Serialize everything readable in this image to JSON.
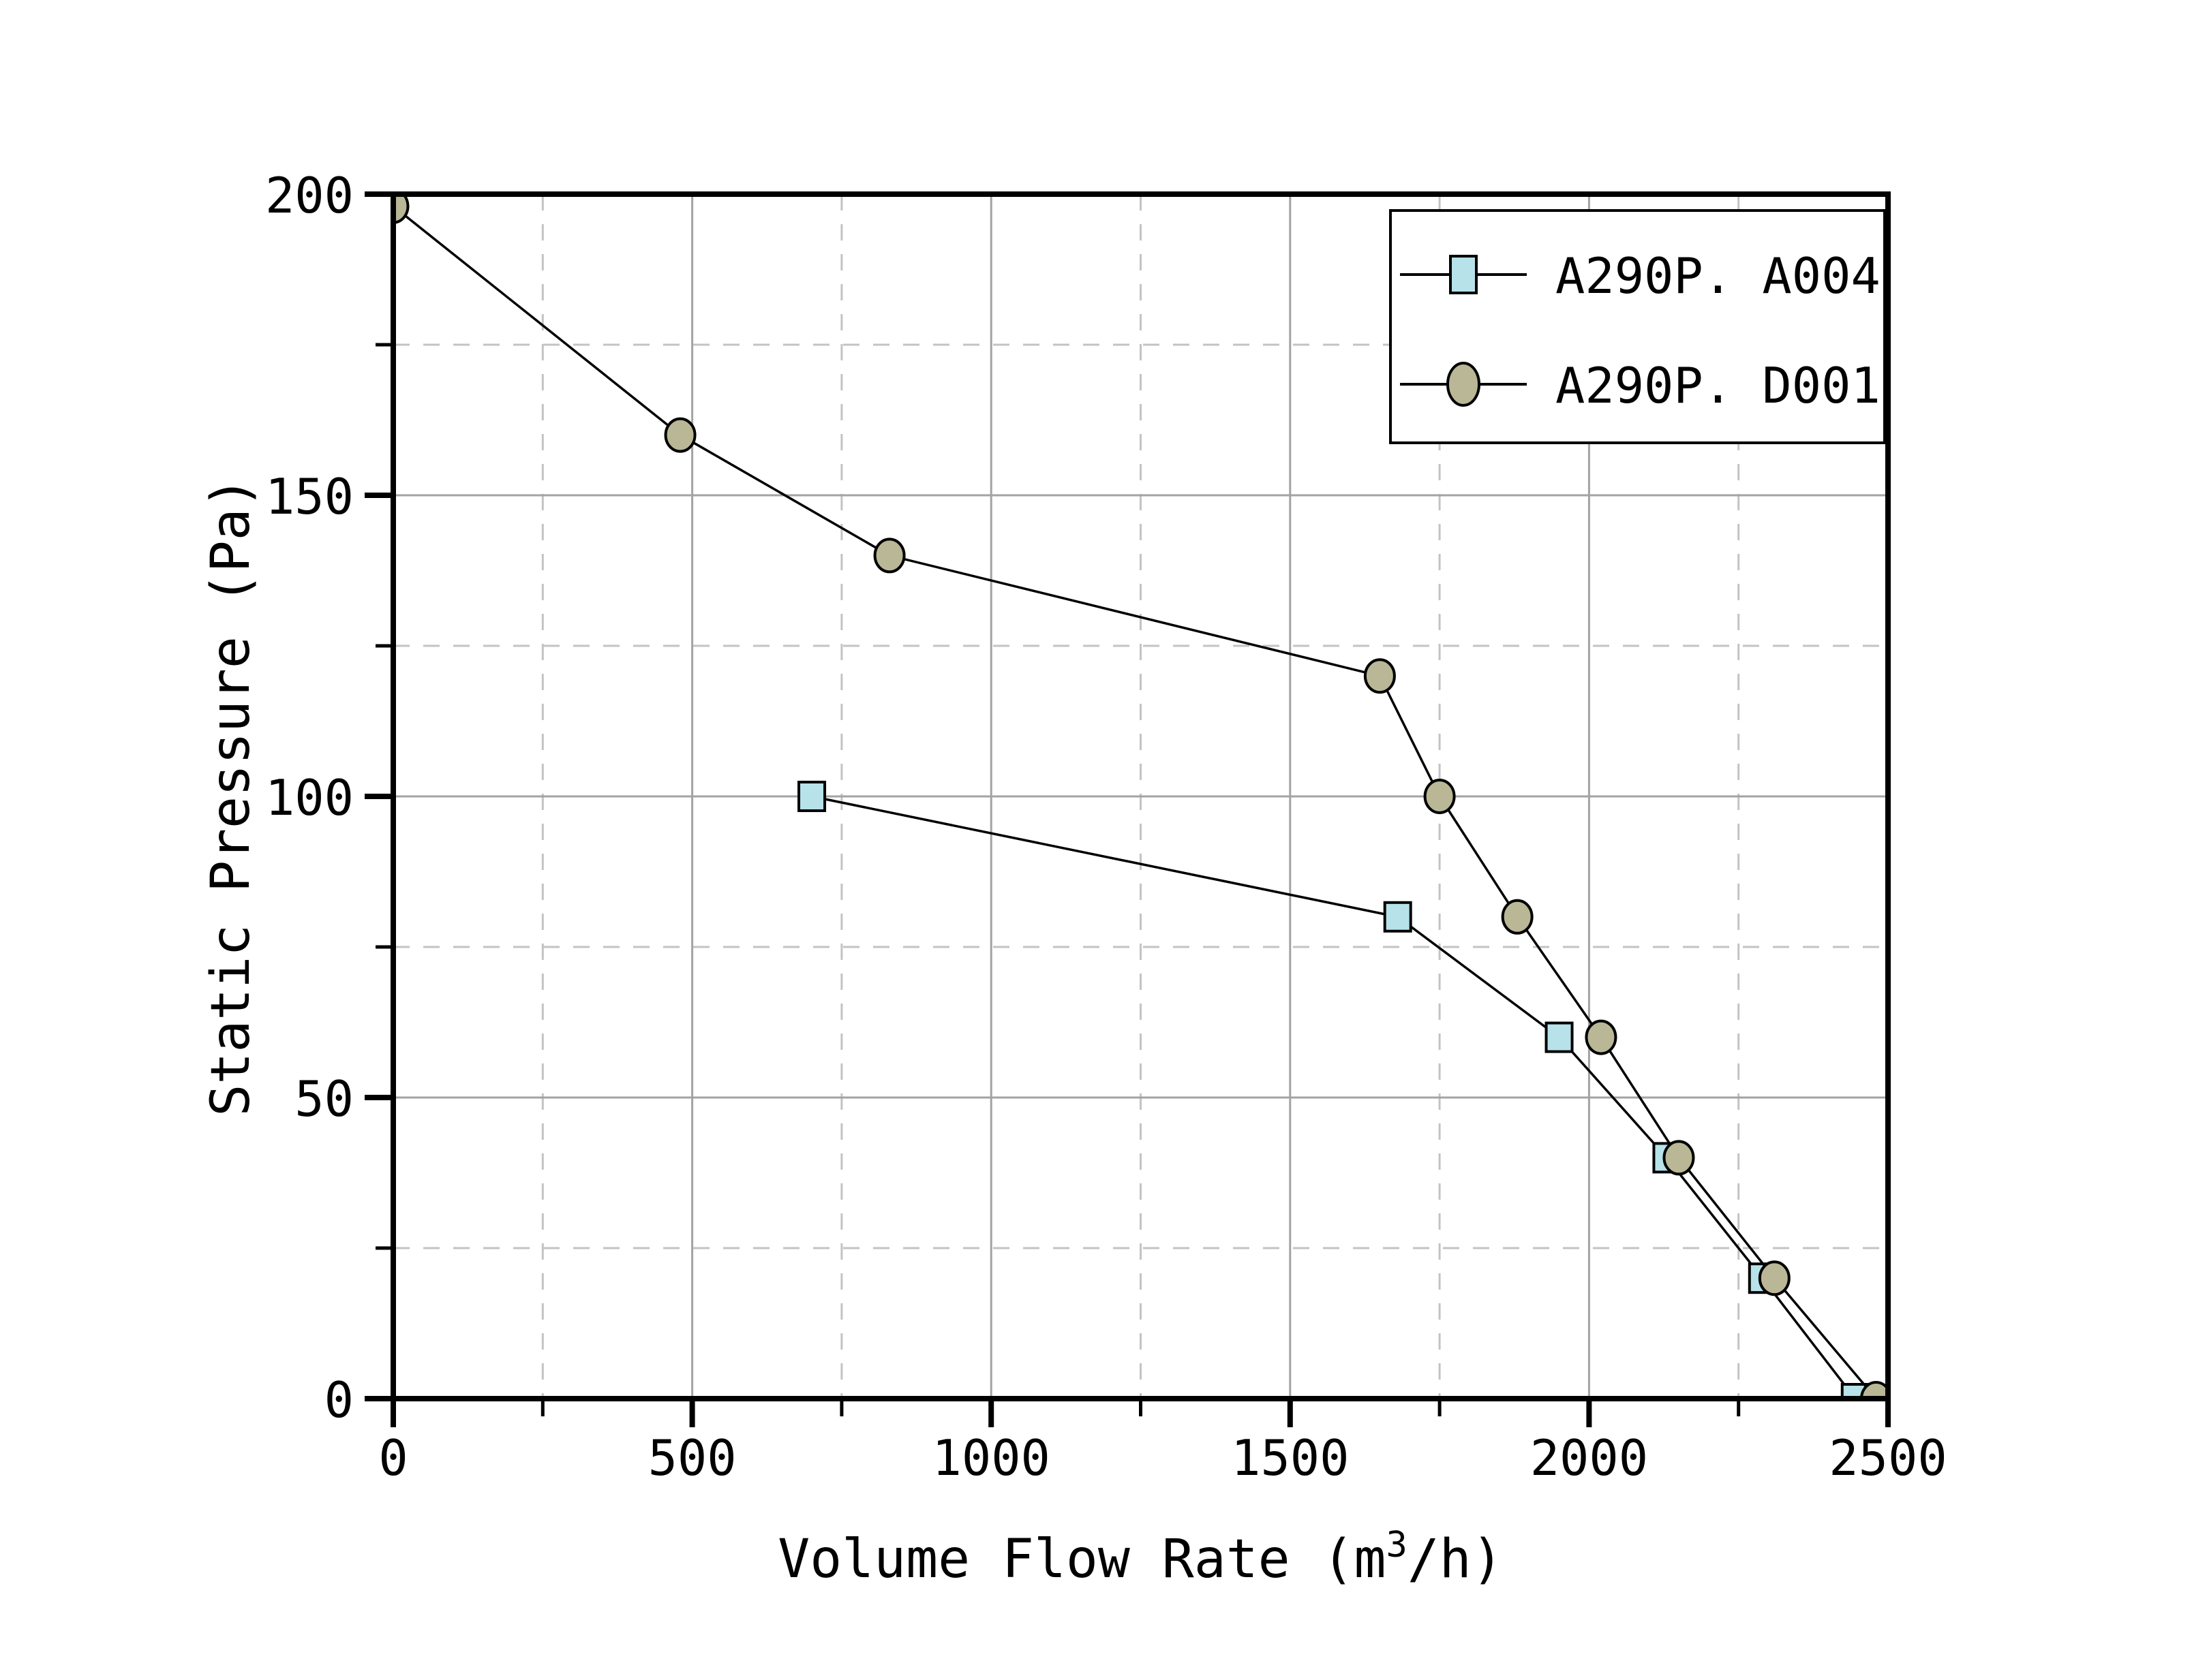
{
  "chart_data": {
    "type": "line",
    "title": "",
    "xlabel": "Volume Flow Rate (m³/h)",
    "xlabel_parts": [
      "Volume Flow Rate (m",
      "3",
      "/h)"
    ],
    "ylabel": "Static Pressure (Pa)",
    "xlim": [
      0,
      2500
    ],
    "ylim": [
      0,
      200
    ],
    "x_major_ticks": [
      0,
      500,
      1000,
      1500,
      2000,
      2500
    ],
    "x_minor_ticks": [
      250,
      750,
      1250,
      1750,
      2250
    ],
    "y_major_ticks": [
      0,
      50,
      100,
      150,
      200
    ],
    "y_minor_ticks": [
      25,
      75,
      125,
      175
    ],
    "grid": {
      "major": "solid",
      "minor": "dashed"
    },
    "legend_position": "top-right",
    "series": [
      {
        "name": "A290P. A004",
        "marker": "square",
        "marker_fill": "#b7e2e9",
        "line_color": "#000000",
        "points": [
          [
            700,
            100
          ],
          [
            1680,
            80
          ],
          [
            1950,
            60
          ],
          [
            2130,
            40
          ],
          [
            2290,
            20
          ],
          [
            2445,
            0
          ]
        ]
      },
      {
        "name": "A290P. D001",
        "marker": "circle",
        "marker_fill": "#b9b795",
        "line_color": "#000000",
        "points": [
          [
            0,
            198
          ],
          [
            480,
            160
          ],
          [
            830,
            140
          ],
          [
            1650,
            120
          ],
          [
            1750,
            100
          ],
          [
            1880,
            80
          ],
          [
            2020,
            60
          ],
          [
            2150,
            40
          ],
          [
            2310,
            20
          ],
          [
            2480,
            0
          ]
        ]
      }
    ],
    "colors": {
      "axis": "#000000",
      "major_grid": "#a3a3a3",
      "minor_grid": "#c3c3c3",
      "background": "#ffffff",
      "legend_border": "#000000",
      "legend_fill": "#ffffff"
    }
  }
}
